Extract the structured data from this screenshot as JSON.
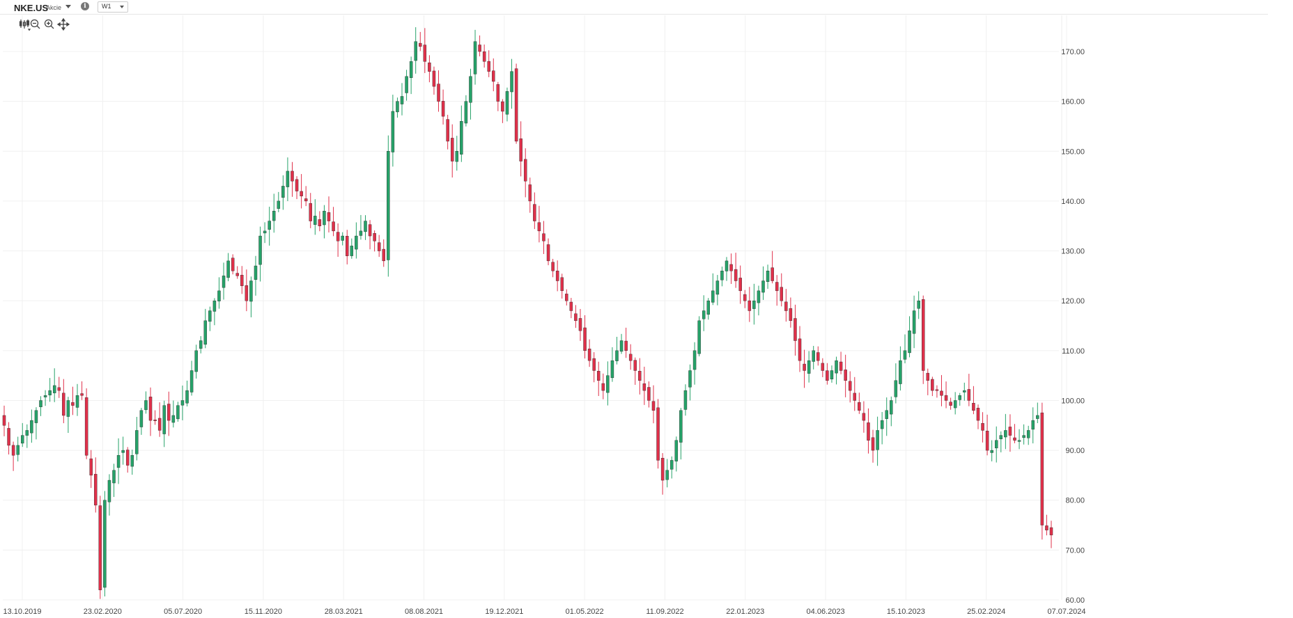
{
  "header": {
    "symbol": "NKE.US",
    "type_label": "Akcie",
    "info_icon": "info-icon",
    "interval": "W1"
  },
  "toolbar": {
    "icons": [
      "candle-style-icon",
      "zoom-out-icon",
      "zoom-in-icon",
      "crosshair-icon"
    ]
  },
  "colors": {
    "up": "#26a269",
    "down": "#e0304a",
    "grid": "#f0f0f0",
    "axis_text": "#444444"
  },
  "chart_data": {
    "type": "candlestick",
    "title": "",
    "xlabel": "",
    "ylabel": "",
    "ylim": [
      60,
      180
    ],
    "y_ticks": [
      "60.00",
      "70.00",
      "80.00",
      "90.00",
      "100.00",
      "110.00",
      "120.00",
      "130.00",
      "140.00",
      "150.00",
      "160.00",
      "170.00"
    ],
    "x_tick_labels": [
      "13.10.2019",
      "23.02.2020",
      "05.07.2020",
      "15.11.2020",
      "28.03.2021",
      "08.08.2021",
      "19.12.2021",
      "01.05.2022",
      "11.09.2022",
      "22.01.2023",
      "04.06.2023",
      "15.10.2023",
      "25.02.2024",
      "07.07.2024"
    ],
    "grid": true,
    "close_approx_weekly": [
      95,
      91,
      89,
      91,
      93,
      94,
      96,
      98,
      100,
      101,
      102,
      103,
      102,
      97,
      100,
      99,
      101,
      101,
      89,
      85,
      79,
      62,
      80,
      84,
      86,
      89,
      90,
      87,
      89,
      94,
      98,
      100,
      96,
      96,
      94,
      99,
      96,
      97,
      99,
      100,
      102,
      106,
      110,
      112,
      116,
      118,
      120,
      122,
      125,
      128,
      126,
      125,
      123,
      120,
      124,
      127,
      133,
      134,
      136,
      138,
      140,
      143,
      146,
      144,
      142,
      141,
      140,
      136,
      137,
      135,
      138,
      136,
      134,
      132,
      133,
      129,
      131,
      133,
      134,
      136,
      133,
      132,
      130,
      128,
      150,
      158,
      160,
      161,
      165,
      168,
      172,
      171,
      168,
      166,
      163,
      160,
      157,
      152,
      148,
      150,
      156,
      160,
      165,
      172,
      170,
      168,
      166,
      164,
      160,
      158,
      162,
      166,
      152,
      148,
      144,
      140,
      136,
      134,
      132,
      128,
      126,
      124,
      122,
      120,
      118,
      116,
      114,
      110,
      108,
      106,
      104,
      102,
      105,
      108,
      110,
      112,
      110,
      108,
      106,
      104,
      102,
      100,
      98,
      88,
      84,
      86,
      88,
      92,
      98,
      102,
      106,
      110,
      116,
      118,
      120,
      122,
      124,
      126,
      128,
      126,
      124,
      122,
      120,
      118,
      120,
      122,
      124,
      126,
      124,
      122,
      120,
      118,
      116,
      112,
      108,
      106,
      108,
      110,
      108,
      106,
      104,
      106,
      108,
      106,
      104,
      102,
      100,
      98,
      96,
      92,
      90,
      94,
      96,
      98,
      100,
      104,
      108,
      110,
      114,
      118,
      120,
      106,
      104,
      102,
      102,
      101,
      100,
      99,
      100,
      101,
      102,
      100,
      98,
      96,
      94,
      90,
      90,
      92,
      93,
      94,
      93,
      92,
      92,
      93,
      94,
      96,
      97,
      75,
      74,
      73
    ],
    "first_date": "13.10.2019",
    "last_date": "07.07.2024"
  }
}
